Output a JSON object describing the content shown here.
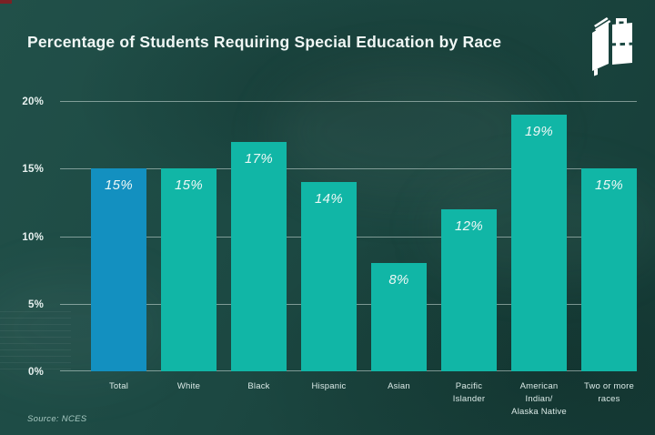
{
  "header": {
    "title": "Percentage of Students Requiring Special Education by Race"
  },
  "logo": {
    "name": "book-and-bag-logo",
    "color": "#ffffff"
  },
  "footer": {
    "source": "Source: NCES"
  },
  "chart_data": {
    "type": "bar",
    "title": "Percentage of Students Requiring Special Education by Race",
    "xlabel": "",
    "ylabel": "",
    "categories": [
      "Total",
      "White",
      "Black",
      "Hispanic",
      "Asian",
      "Pacific\nIslander",
      "American\nIndian/\nAlaska Native",
      "Two or more\nraces"
    ],
    "values": [
      15,
      15,
      17,
      14,
      8,
      12,
      19,
      15
    ],
    "value_labels": [
      "15%",
      "15%",
      "17%",
      "14%",
      "8%",
      "12%",
      "19%",
      "15%"
    ],
    "ylim": [
      0,
      20
    ],
    "yticks": [
      0,
      5,
      10,
      15,
      20
    ],
    "ytick_labels": [
      "0%",
      "5%",
      "10%",
      "15%",
      "20%"
    ],
    "grid": true,
    "legend": "none",
    "bar_colors": {
      "default": "#11b6a6",
      "highlight": "#1390c0",
      "highlight_index": 0
    },
    "colors": {
      "background": "#1d4a44",
      "gridline": "rgba(224,238,234,0.5)",
      "text": "#eef8f6"
    }
  }
}
